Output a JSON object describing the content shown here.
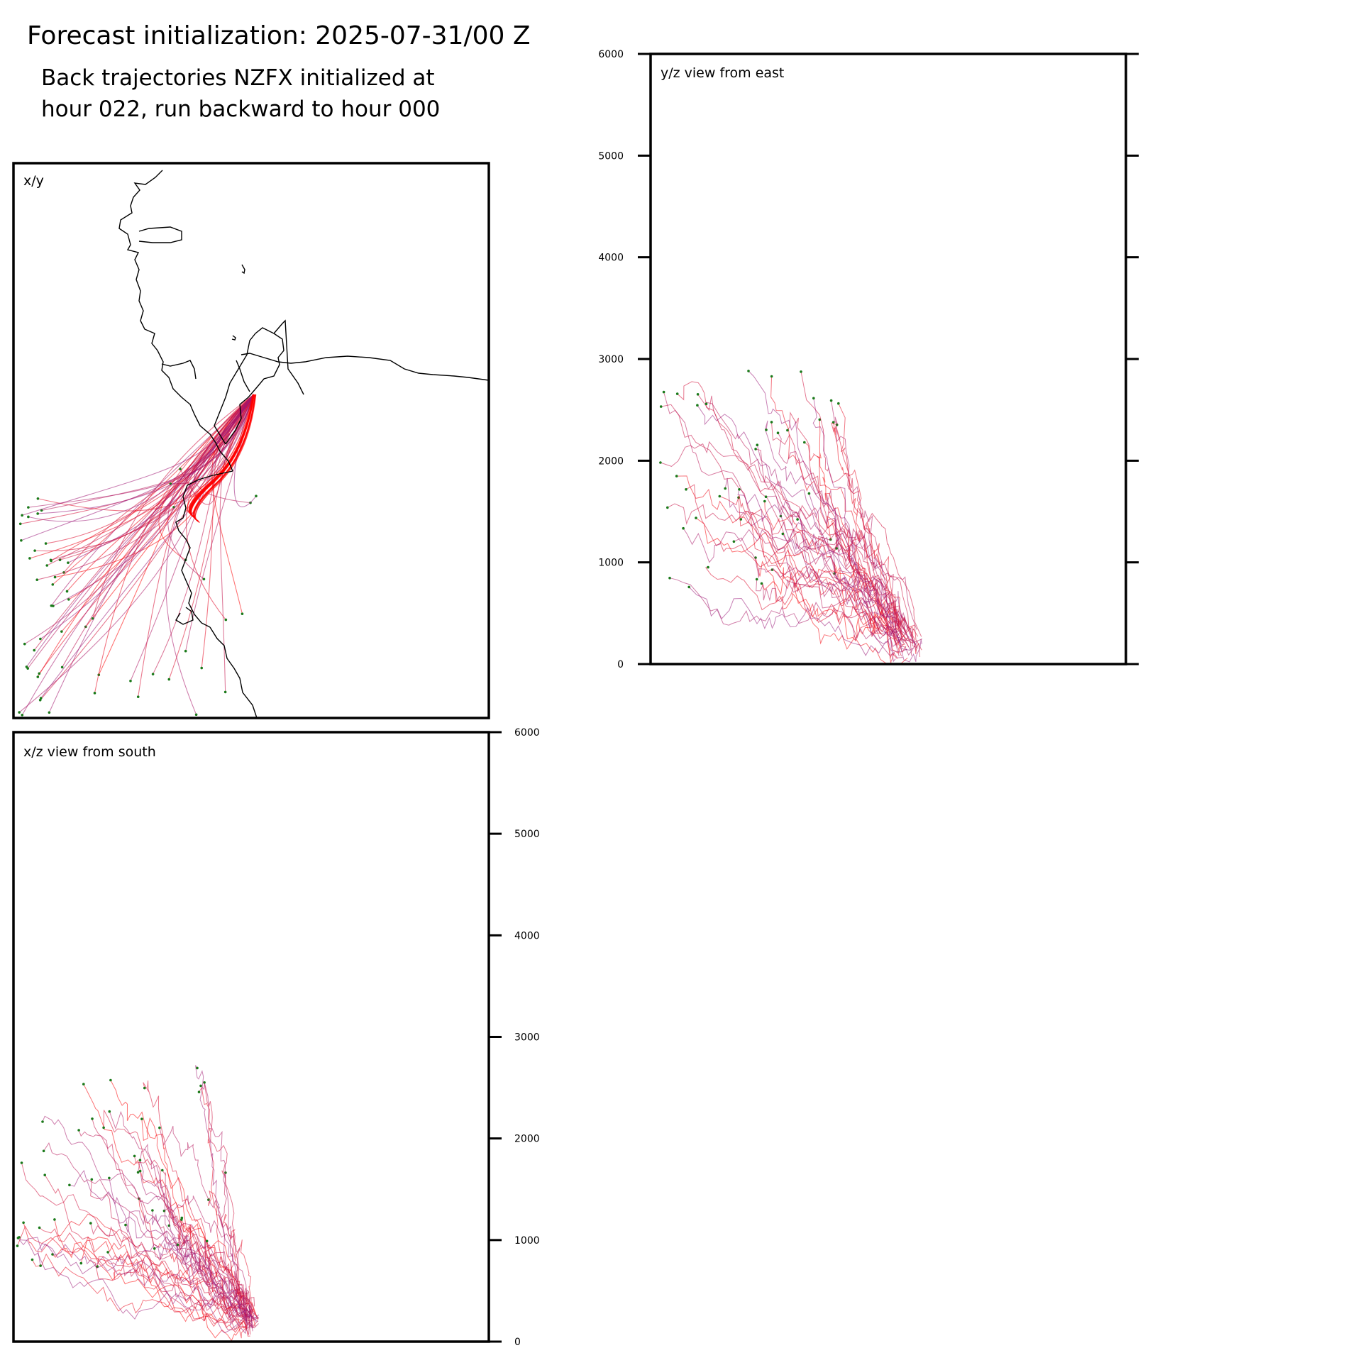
{
  "header": {
    "title": "Forecast initialization: 2025-07-31/00 Z",
    "subtitle_line1": "Back trajectories NZFX initialized at",
    "subtitle_line2": "hour 022, run backward to hour 000"
  },
  "panels": {
    "xy": {
      "label": "x/y"
    },
    "yz": {
      "label": "y/z view from east"
    },
    "xz": {
      "label": "x/z view from south"
    }
  },
  "colors": {
    "trajectory_recent": "#ff0000",
    "trajectory_old": "#9b1a7a",
    "endpoint_marker": "#1a7a1a",
    "coastline": "#000000"
  },
  "chart_data": [
    {
      "type": "line",
      "panel": "x/y",
      "title": "x/y",
      "description_keys": "horizontal map of back trajectories with coastline",
      "trajectory_count": 60,
      "source_point": "NZFX",
      "grid": false
    },
    {
      "type": "line",
      "panel": "y/z view from east",
      "title": "y/z view from east",
      "xlabel": "",
      "ylabel": "",
      "ylim": [
        0,
        6000
      ],
      "yticks": [
        0,
        1000,
        2000,
        3000,
        4000,
        5000,
        6000
      ],
      "ytick_side": "left",
      "grid": false
    },
    {
      "type": "line",
      "panel": "x/z view from south",
      "title": "x/z view from south",
      "xlabel": "",
      "ylabel": "",
      "ylim": [
        0,
        6000
      ],
      "yticks": [
        0,
        1000,
        2000,
        3000,
        4000,
        5000,
        6000
      ],
      "ytick_side": "right",
      "grid": false
    }
  ]
}
